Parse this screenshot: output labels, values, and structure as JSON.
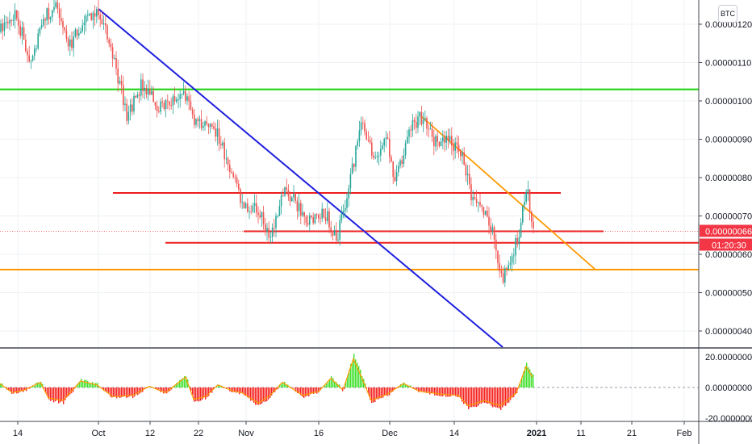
{
  "currency_badge": "BTC",
  "price_label": "0.00000066",
  "countdown_label": "01:20:30",
  "colors": {
    "price_badge": "#f23645",
    "up_candle": "#26a69a",
    "blue_trend": "#1f1fdf",
    "green_level": "#2bd620",
    "red_level": "#ee1c1c",
    "orange_level": "#ff9800",
    "hist_up": "#3fe02b",
    "hist_down": "#f5221f",
    "osc_line": "#ff9800",
    "grid": "#eef0f3"
  },
  "chart_data": [
    {
      "type": "line",
      "title": "",
      "xlabel": "",
      "ylabel": "",
      "x_ticks": [
        "14",
        "Oct",
        "12",
        "22",
        "Nov",
        "16",
        "Dec",
        "14",
        "2021",
        "11",
        "21",
        "Feb"
      ],
      "y_ticks": [
        "0.00000040",
        "0.00000050",
        "0.00000060",
        "0.00000070",
        "0.00000080",
        "0.00000090",
        "0.00000100",
        "0.00000110",
        "0.00000120"
      ],
      "ylim": [
        3.6e-07,
        1.24e-06
      ],
      "last_price": 6.6e-07,
      "series": [
        {
          "x": [
            "14",
            "Oct",
            "12",
            "22",
            "Nov",
            "16",
            "Dec",
            "14",
            "2021"
          ],
          "values": [
            1.18e-06,
            1.24e-06,
            1.02e-06,
            9.6e-07,
            7e-07,
            7e-07,
            9.3e-07,
            8e-07,
            6.6e-07
          ]
        }
      ],
      "annotations": [
        {
          "kind": "trendline",
          "color": "blue"
        },
        {
          "kind": "horizontal",
          "color": "green",
          "value": 1.03e-06
        },
        {
          "kind": "horizontal",
          "color": "red",
          "value": 7.6e-07
        },
        {
          "kind": "horizontal",
          "color": "red",
          "value": 6.6e-07
        },
        {
          "kind": "horizontal",
          "color": "red",
          "value": 6.3e-07
        },
        {
          "kind": "horizontal",
          "color": "orange",
          "value": 5.6e-07
        },
        {
          "kind": "trendline",
          "color": "orange"
        }
      ],
      "grid": true
    },
    {
      "type": "bar",
      "title": "",
      "y_ticks": [
        "20.00000000",
        "0.00000000",
        "-20.00000000"
      ],
      "ylim": [
        -20,
        20
      ]
    }
  ]
}
